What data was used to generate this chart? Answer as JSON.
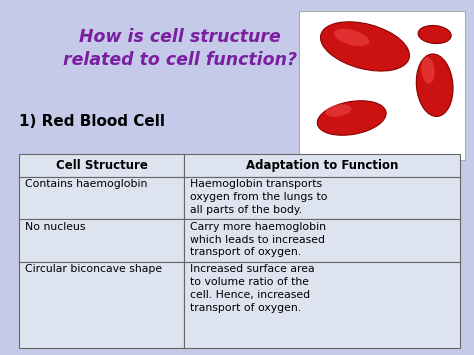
{
  "title_line1": "How is cell structure",
  "title_line2": "related to cell function?",
  "subtitle": "1) Red Blood Cell",
  "bg_color": "#c5cae8",
  "title_color": "#7b1fa2",
  "subtitle_color": "#000000",
  "table_bg": "#dde4f0",
  "table_border_color": "#666666",
  "col_header_1": "Cell Structure",
  "col_header_2": "Adaptation to Function",
  "rows": [
    [
      "Contains haemoglobin",
      "Haemoglobin transports\noxygen from the lungs to\nall parts of the body."
    ],
    [
      "No nucleus",
      "Carry more haemoglobin\nwhich leads to increased\ntransport of oxygen."
    ],
    [
      "Circular biconcave shape",
      "Increased surface area\nto volume ratio of the\ncell. Hence, increased\ntransport of oxygen."
    ]
  ],
  "fig_width": 4.74,
  "fig_height": 3.55,
  "dpi": 100
}
